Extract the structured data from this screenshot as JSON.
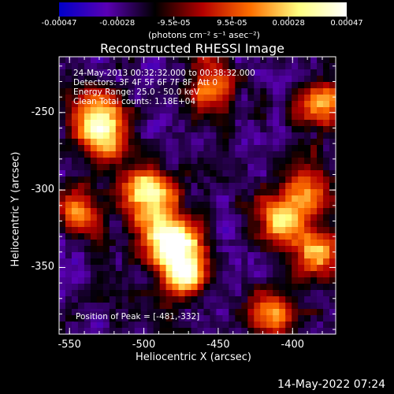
{
  "chart_data": {
    "type": "heatmap",
    "title": "Reconstructed RHESSI Image",
    "xlabel": "Heliocentric X (arcsec)",
    "ylabel": "Heliocentric Y (arcsec)",
    "xlim": [
      -557,
      -371
    ],
    "ylim": [
      -393,
      -214
    ],
    "x_ticks": [
      "-550",
      "-500",
      "-450",
      "-400"
    ],
    "y_ticks": [
      "-250",
      "-300",
      "-350"
    ],
    "colorbar": {
      "range": [
        -0.00047,
        0.00047
      ],
      "tick_labels": [
        "-0.00047",
        "-0.00028",
        "-9.5e-05",
        "9.5e-05",
        "0.00028",
        "0.00047"
      ],
      "unit_label": "(photons cm⁻² s⁻¹ asec⁻²)",
      "colormap": [
        "#0000c8",
        "#5a00b4",
        "#000000",
        "#b40000",
        "#ff7000",
        "#ffff80",
        "#ffffff"
      ]
    },
    "annotations": [
      "24-May-2013 00:32:32.000 to 00:38:32.000",
      "Detectors: 3F 4F 5F 6F 7F 8F, Att 0",
      "Energy Range: 25.0 - 50.0 keV",
      "Clean     Total counts: 1.18E+04"
    ],
    "peak_label": "Position of Peak = [-481,-332]",
    "peak": [
      -481,
      -332
    ],
    "sources": [
      {
        "x": -481,
        "y": -332,
        "value": 0.00047
      },
      {
        "x": -500,
        "y": -300,
        "value": 0.00033
      },
      {
        "x": -472,
        "y": -352,
        "value": 0.0004
      },
      {
        "x": -528,
        "y": -265,
        "value": 0.00025
      },
      {
        "x": -530,
        "y": -248,
        "value": 0.0002
      },
      {
        "x": -408,
        "y": -318,
        "value": 0.00026
      },
      {
        "x": -385,
        "y": -340,
        "value": 0.00024
      },
      {
        "x": -390,
        "y": -300,
        "value": 0.0002
      },
      {
        "x": -380,
        "y": -245,
        "value": 0.00025
      },
      {
        "x": -455,
        "y": -232,
        "value": 0.00016
      },
      {
        "x": -415,
        "y": -380,
        "value": 0.0002
      },
      {
        "x": -545,
        "y": -315,
        "value": 0.00014
      }
    ]
  },
  "footer": {
    "timestamp": "14-May-2022 07:24"
  }
}
